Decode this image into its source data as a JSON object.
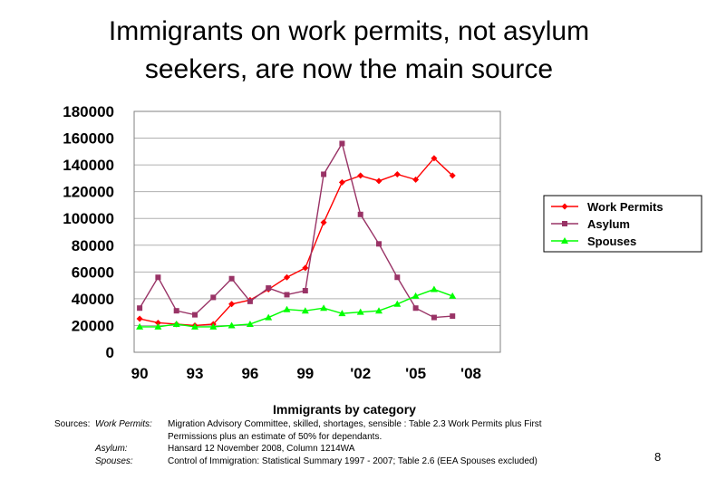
{
  "title": {
    "line1": "Immigrants on work permits, not asylum",
    "line2": "seekers, are now the main source"
  },
  "chart_data": {
    "type": "line",
    "title": "",
    "xlabel": "Immigrants by category",
    "ylabel": "",
    "x": [
      1990,
      1991,
      1992,
      1993,
      1994,
      1995,
      1996,
      1997,
      1998,
      1999,
      2000,
      2001,
      2002,
      2003,
      2004,
      2005,
      2006,
      2007
    ],
    "xlim": [
      1989.7,
      2009.6
    ],
    "x_ticks": [
      1990,
      1993,
      1996,
      1999,
      2002,
      2005,
      2008
    ],
    "x_tick_labels": [
      "90",
      "93",
      "96",
      "99",
      "'02",
      "'05",
      "'08"
    ],
    "ylim": [
      0,
      180000
    ],
    "y_ticks": [
      0,
      20000,
      40000,
      60000,
      80000,
      100000,
      120000,
      140000,
      160000,
      180000
    ],
    "y_tick_labels": [
      "0",
      "20000",
      "40000",
      "60000",
      "80000",
      "100000",
      "120000",
      "140000",
      "160000",
      "180000"
    ],
    "grid": "horizontal",
    "legend_position": "right",
    "series": [
      {
        "name": "Work Permits",
        "color": "#ff0000",
        "marker": "diamond",
        "values": [
          25000,
          22000,
          21000,
          20000,
          21000,
          36000,
          39000,
          47000,
          56000,
          63000,
          97000,
          127000,
          132000,
          128000,
          133000,
          129000,
          145000,
          132000
        ]
      },
      {
        "name": "Asylum",
        "color": "#993366",
        "marker": "square",
        "values": [
          33000,
          56000,
          31000,
          28000,
          41000,
          55000,
          38000,
          48000,
          43000,
          46000,
          133000,
          156000,
          103000,
          81000,
          56000,
          33000,
          26000,
          27000
        ]
      },
      {
        "name": "Spouses",
        "color": "#00ff00",
        "marker": "triangle",
        "values": [
          19000,
          19000,
          21000,
          19000,
          19000,
          20000,
          21000,
          26000,
          32000,
          31000,
          33000,
          29000,
          30000,
          31000,
          36000,
          42000,
          47000,
          42000
        ]
      }
    ]
  },
  "sources": {
    "heading": "Sources:",
    "work_permits_label": "Work Permits:",
    "work_permits_text_1": "Migration Advisory Committee, skilled, shortages, sensible : Table 2.3 Work Permits plus First",
    "work_permits_text_2": "Permissions plus an estimate of 50% for dependants.",
    "asylum_label": "Asylum:",
    "asylum_text": "Hansard 12 November 2008, Column 1214WA",
    "spouses_label": "Spouses:",
    "spouses_text": "Control of Immigration: Statistical Summary 1997 - 2007; Table 2.6 (EEA Spouses excluded)"
  },
  "page_number": "8"
}
